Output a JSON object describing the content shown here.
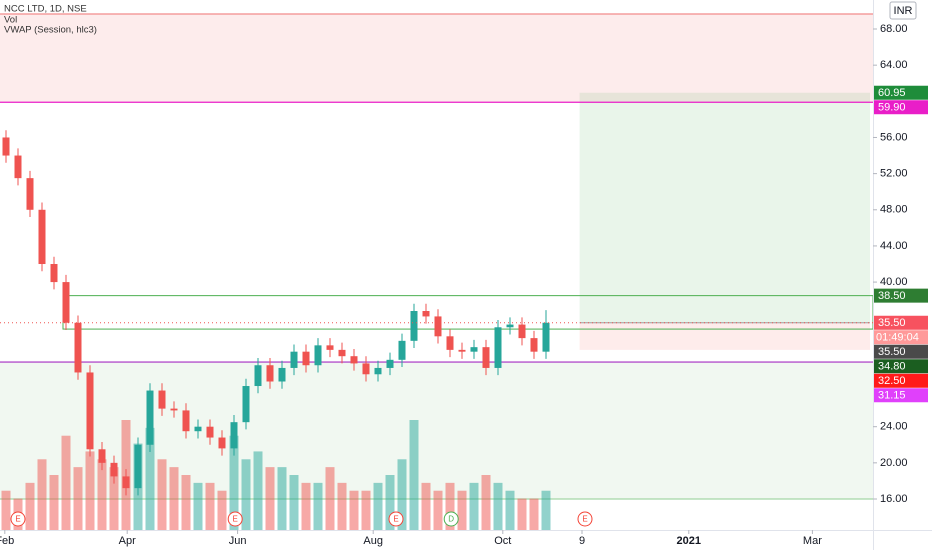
{
  "chart_data": {
    "type": "candlestick",
    "title": "NCC LTD, 1D, NSE",
    "indicators": [
      "Vol",
      "VWAP (Session, hlc3)"
    ],
    "currency": "INR",
    "up_color": "#26a69a",
    "down_color": "#ef5350",
    "open": [
      56,
      54,
      51.5,
      48,
      42,
      40,
      35.5,
      30,
      21.5,
      20,
      18.5,
      17.2,
      22,
      28,
      26,
      25.8,
      23.5,
      24,
      22.8,
      21.6,
      24.5,
      28.5,
      30.8,
      29,
      30.5,
      32.3,
      30.8,
      33,
      32.5,
      31.8,
      31,
      29.8,
      30.5,
      31.4,
      33.5,
      36.8,
      36.2,
      34,
      32.5,
      32.3,
      32.8,
      30.5,
      35,
      35.3,
      33.8,
      32.3
    ],
    "high": [
      56.8,
      54.8,
      52.3,
      48.8,
      42.8,
      40.8,
      36.3,
      30.8,
      22.3,
      20.8,
      19.3,
      22.8,
      28.8,
      28.8,
      26.8,
      26.6,
      24.8,
      24.8,
      23.6,
      25.3,
      29.3,
      31.6,
      31.6,
      31.3,
      33.1,
      33.1,
      33.8,
      33.8,
      33.3,
      32.6,
      31.8,
      31.3,
      32.2,
      34.3,
      37.6,
      37.6,
      37,
      34.8,
      33.3,
      33.6,
      33.6,
      35.8,
      36.1,
      36.1,
      34.6,
      36.9
    ],
    "low": [
      53.2,
      50.7,
      47.2,
      41.2,
      39.2,
      34.7,
      29.2,
      20.7,
      19.2,
      17.7,
      16.4,
      16.4,
      21.2,
      25.2,
      25,
      22.7,
      22.7,
      22,
      20.8,
      20.8,
      23.7,
      27.7,
      28.2,
      28.2,
      29.7,
      30,
      30,
      31.7,
      31,
      30.2,
      29,
      29,
      29.7,
      30.6,
      32.7,
      35.4,
      33.2,
      31.7,
      31.5,
      31.5,
      29.7,
      29.7,
      34.2,
      33,
      31.5,
      31.5
    ],
    "close": [
      54,
      51.5,
      48,
      42,
      40,
      35.5,
      30,
      21.5,
      20,
      18.5,
      17.2,
      22,
      28,
      26,
      25.8,
      23.5,
      24,
      22.8,
      21.6,
      24.5,
      28.5,
      30.8,
      29,
      30.5,
      32.3,
      30.8,
      33,
      32.5,
      31.8,
      31,
      29.8,
      30.5,
      31.4,
      33.5,
      36.8,
      36.2,
      34,
      32.5,
      32.3,
      32.8,
      30.5,
      35,
      35.3,
      33.8,
      32.3,
      35.5
    ],
    "volume": [
      5,
      4,
      6,
      9,
      7,
      12,
      8,
      10,
      9,
      8,
      14,
      11,
      13,
      9,
      8,
      7,
      6,
      6,
      5,
      12,
      9,
      10,
      8,
      8,
      7,
      6,
      6,
      8,
      6,
      5,
      5,
      6,
      7,
      9,
      14,
      6,
      5,
      6,
      5,
      6,
      7,
      6,
      5,
      4,
      4,
      5
    ],
    "xlim": [
      0,
      72.75
    ],
    "xticks": [
      {
        "value": 0.4,
        "label": "Feb"
      },
      {
        "value": 10.6,
        "label": "Apr"
      },
      {
        "value": 19.8,
        "label": "Jun"
      },
      {
        "value": 31.1,
        "label": "Aug"
      },
      {
        "value": 41.9,
        "label": "Oct"
      },
      {
        "value": 48.5,
        "label": "9"
      },
      {
        "value": 57.4,
        "label": "2021"
      },
      {
        "value": 67.7,
        "label": "Mar"
      }
    ],
    "ylim": [
      12.57,
      71.21
    ],
    "yticks": [
      {
        "value": 16,
        "label": "16.00"
      },
      {
        "value": 20,
        "label": "20.00"
      },
      {
        "value": 24,
        "label": "24.00"
      },
      {
        "value": 40,
        "label": "40.00"
      },
      {
        "value": 44,
        "label": "44.00"
      },
      {
        "value": 48,
        "label": "48.00"
      },
      {
        "value": 52,
        "label": "52.00"
      },
      {
        "value": 56,
        "label": "56.00"
      },
      {
        "value": 64,
        "label": "64.00"
      },
      {
        "value": 68,
        "label": "68.00"
      }
    ],
    "zones": [
      {
        "from": 59.9,
        "to": 69.66,
        "color": "#fdecec"
      },
      {
        "from": 16,
        "to": 31.15,
        "color": "#f1f8f1"
      }
    ],
    "box": {
      "x0": 5.25,
      "bottom": 34.8,
      "top": 38.5,
      "color": "#4caf50"
    },
    "levels": [
      {
        "value": 69.66,
        "color": "#f28b8b"
      },
      {
        "value": 59.9,
        "color": "#e91ec8"
      },
      {
        "value": 31.15,
        "color": "#b452cc"
      },
      {
        "value": 16,
        "color": "#a5d6a7"
      }
    ],
    "position": {
      "x0": 48.3,
      "x1": 72.5,
      "entry": 35.5,
      "target": 60.95,
      "stop": 32.5
    },
    "price_labels": [
      {
        "value": 60.95,
        "label": "60.95",
        "color": "#1e8c3a"
      },
      {
        "value": 59.9,
        "label": "59.90",
        "color": "#e91ec8"
      },
      {
        "value": 38.5,
        "label": "38.50",
        "color": "#2e7d32"
      },
      {
        "value": 35.5,
        "label": "35.50",
        "color": "#f7525f",
        "timer": "01:49:04"
      },
      {
        "value": 35.5,
        "label": "35.50",
        "color": "#4a4a4a"
      },
      {
        "value": 34.8,
        "label": "34.80",
        "color": "#1b5e20"
      },
      {
        "value": 32.5,
        "label": "32.50",
        "color": "#ff1a1a"
      },
      {
        "value": 31.15,
        "label": "31.15",
        "color": "#e040fb"
      }
    ],
    "events": [
      {
        "x": 1.5,
        "label": "E"
      },
      {
        "x": 19.6,
        "label": "E"
      },
      {
        "x": 33,
        "label": "E"
      },
      {
        "x": 37.6,
        "label": "D"
      },
      {
        "x": 48.75,
        "label": "E"
      }
    ]
  }
}
